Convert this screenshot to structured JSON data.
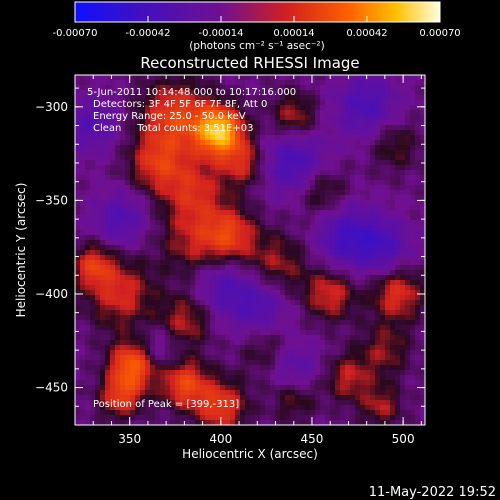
{
  "chart_data": {
    "type": "heatmap",
    "title": "Reconstructed RHESSI Image",
    "xlabel": "Heliocentric X (arcsec)",
    "ylabel": "Heliocentric Y (arcsec)",
    "xlim": [
      320,
      512
    ],
    "ylim": [
      -470,
      -283
    ],
    "x_ticks": [
      350,
      400,
      450,
      500
    ],
    "y_ticks": [
      -300,
      -350,
      -400,
      -450
    ],
    "colorbar": {
      "ticks": [
        "-0.00070",
        "-0.00042",
        "-0.00014",
        "0.00014",
        "0.00042",
        "0.00070"
      ],
      "range": [
        -0.0007,
        0.0007
      ],
      "unit_label": "(photons cm⁻² s⁻¹ asec⁻²)",
      "colors": [
        "#1010ff",
        "#4010c0",
        "#701090",
        "#d02020",
        "#ff6000",
        "#ffc000",
        "#ffffe0"
      ]
    },
    "annotations": [
      "5-Jun-2011 10:14:48.000 to 10:17:16.000",
      "Detectors: 3F 4F 5F 6F 7F 8F, Att 0",
      "Energy Range: 25.0 - 50.0 keV",
      "Clean     Total counts: 3.51E+03"
    ],
    "peak_label": "Position of Peak = [399,-313]",
    "peak": [
      399,
      -313
    ],
    "sources": [
      {
        "x": 399,
        "y": -313,
        "sigma": 9,
        "amp": 0.00066
      },
      {
        "x": 375,
        "y": -305,
        "sigma": 13,
        "amp": 0.00034
      },
      {
        "x": 412,
        "y": -330,
        "sigma": 9,
        "amp": 0.00025
      },
      {
        "x": 365,
        "y": -330,
        "sigma": 11,
        "amp": 0.00028
      },
      {
        "x": 385,
        "y": -345,
        "sigma": 12,
        "amp": 0.00025
      },
      {
        "x": 405,
        "y": -368,
        "sigma": 10,
        "amp": 0.0003
      },
      {
        "x": 385,
        "y": -372,
        "sigma": 13,
        "amp": 0.0002
      },
      {
        "x": 440,
        "y": -305,
        "sigma": 9,
        "amp": 0.00022
      },
      {
        "x": 455,
        "y": -345,
        "sigma": 10,
        "amp": 0.00018
      },
      {
        "x": 430,
        "y": -385,
        "sigma": 12,
        "amp": 0.00022
      },
      {
        "x": 460,
        "y": -400,
        "sigma": 10,
        "amp": 0.00026
      },
      {
        "x": 495,
        "y": -320,
        "sigma": 10,
        "amp": 0.00016
      },
      {
        "x": 497,
        "y": -400,
        "sigma": 10,
        "amp": 0.00028
      },
      {
        "x": 490,
        "y": -430,
        "sigma": 10,
        "amp": 0.00018
      },
      {
        "x": 345,
        "y": -400,
        "sigma": 13,
        "amp": 0.00026
      },
      {
        "x": 330,
        "y": -385,
        "sigma": 8,
        "amp": 0.00028
      },
      {
        "x": 352,
        "y": -438,
        "sigma": 9,
        "amp": 0.00045
      },
      {
        "x": 345,
        "y": -455,
        "sigma": 8,
        "amp": 0.0003
      },
      {
        "x": 380,
        "y": -448,
        "sigma": 9,
        "amp": 0.00035
      },
      {
        "x": 400,
        "y": -460,
        "sigma": 10,
        "amp": 0.00032
      },
      {
        "x": 380,
        "y": -415,
        "sigma": 10,
        "amp": 0.00022
      },
      {
        "x": 440,
        "y": -455,
        "sigma": 9,
        "amp": 0.00018
      },
      {
        "x": 470,
        "y": -445,
        "sigma": 9,
        "amp": 0.00022
      },
      {
        "x": 488,
        "y": -460,
        "sigma": 8,
        "amp": 0.0002
      },
      {
        "x": 425,
        "y": -430,
        "sigma": 10,
        "amp": 0.00015
      },
      {
        "x": 345,
        "y": -360,
        "sigma": 10,
        "amp": -0.00022
      },
      {
        "x": 440,
        "y": -330,
        "sigma": 12,
        "amp": -0.00028
      },
      {
        "x": 480,
        "y": -300,
        "sigma": 12,
        "amp": -0.00025
      },
      {
        "x": 470,
        "y": -370,
        "sigma": 12,
        "amp": -0.0003
      },
      {
        "x": 420,
        "y": -405,
        "sigma": 12,
        "amp": -0.00025
      },
      {
        "x": 490,
        "y": -375,
        "sigma": 10,
        "amp": -0.00022
      },
      {
        "x": 440,
        "y": -440,
        "sigma": 10,
        "amp": -0.0002
      },
      {
        "x": 365,
        "y": -430,
        "sigma": 9,
        "amp": -0.00015
      },
      {
        "x": 400,
        "y": -395,
        "sigma": 10,
        "amp": -0.00018
      },
      {
        "x": 330,
        "y": -310,
        "sigma": 10,
        "amp": -0.0002
      }
    ],
    "base_level": -0.00012
  },
  "footer": {
    "timestamp": "11-May-2022 19:52"
  }
}
